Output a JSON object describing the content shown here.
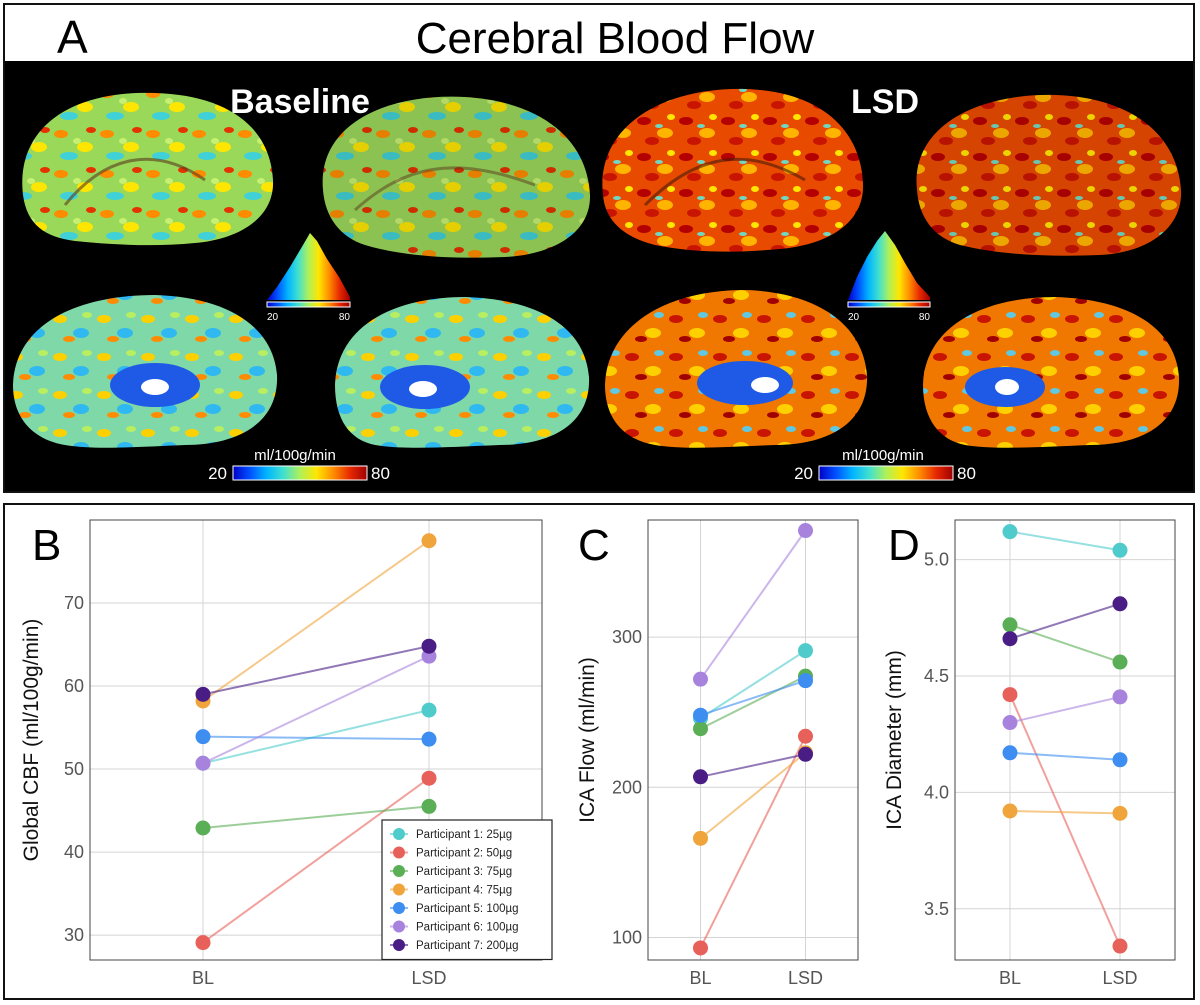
{
  "panel_a": {
    "letter": "A",
    "title": "Cerebral Blood Flow",
    "left_group": "Baseline",
    "right_group": "LSD",
    "colorbar": {
      "unit": "ml/100g/min",
      "min": "20",
      "max": "80"
    },
    "colormap": [
      "#0000c8",
      "#0050ff",
      "#00b4ff",
      "#40e0d0",
      "#aef05a",
      "#ffe600",
      "#ff8c00",
      "#e62800",
      "#a00000"
    ]
  },
  "panel_b": {
    "letter": "B"
  },
  "panel_c": {
    "letter": "C"
  },
  "panel_d": {
    "letter": "D"
  },
  "chart_data": [
    {
      "type": "line",
      "panel": "B",
      "ylabel": "Global CBF (ml/100g/min)",
      "categories": [
        "BL",
        "LSD"
      ],
      "ylim": [
        27,
        80
      ],
      "yticks": [
        30,
        40,
        50,
        60,
        70
      ],
      "grid": true,
      "legend": "bottom-right",
      "series": [
        {
          "name": "Participant 1: 25µg",
          "color": "#4fcbcb",
          "values": [
            50.7,
            57.1
          ]
        },
        {
          "name": "Participant 2: 50µg",
          "color": "#e8605a",
          "values": [
            29.1,
            48.9
          ]
        },
        {
          "name": "Participant 3: 75µg",
          "color": "#5aae55",
          "values": [
            42.9,
            45.5
          ]
        },
        {
          "name": "Participant 4: 75µg",
          "color": "#f0a53c",
          "values": [
            58.2,
            77.5
          ]
        },
        {
          "name": "Participant 5: 100µg",
          "color": "#3d8ef0",
          "values": [
            53.9,
            53.6
          ]
        },
        {
          "name": "Participant 6: 100µg",
          "color": "#a883de",
          "values": [
            50.7,
            63.6
          ]
        },
        {
          "name": "Participant 7: 200µg",
          "color": "#4a1d86",
          "values": [
            59.0,
            64.8
          ]
        }
      ]
    },
    {
      "type": "line",
      "panel": "C",
      "ylabel": "ICA Flow (ml/min)",
      "categories": [
        "BL",
        "LSD"
      ],
      "ylim": [
        85,
        378
      ],
      "yticks": [
        100,
        200,
        300
      ],
      "grid": true,
      "series": [
        {
          "name": "Participant 1: 25µg",
          "color": "#4fcbcb",
          "values": [
            246,
            291
          ]
        },
        {
          "name": "Participant 2: 50µg",
          "color": "#e8605a",
          "values": [
            93,
            234
          ]
        },
        {
          "name": "Participant 3: 75µg",
          "color": "#5aae55",
          "values": [
            239,
            274
          ]
        },
        {
          "name": "Participant 4: 75µg",
          "color": "#f0a53c",
          "values": [
            166,
            223
          ]
        },
        {
          "name": "Participant 5: 100µg",
          "color": "#3d8ef0",
          "values": [
            248,
            271
          ]
        },
        {
          "name": "Participant 6: 100µg",
          "color": "#a883de",
          "values": [
            272,
            371
          ]
        },
        {
          "name": "Participant 7: 200µg",
          "color": "#4a1d86",
          "values": [
            207,
            222
          ]
        }
      ]
    },
    {
      "type": "line",
      "panel": "D",
      "ylabel": "ICA Diameter (mm)",
      "categories": [
        "BL",
        "LSD"
      ],
      "ylim": [
        3.28,
        5.17
      ],
      "yticks": [
        3.5,
        4.0,
        4.5,
        5.0
      ],
      "ytick_labels": [
        "3.5",
        "4.0",
        "4.5",
        "5.0"
      ],
      "grid": true,
      "series": [
        {
          "name": "Participant 1: 25µg",
          "color": "#4fcbcb",
          "values": [
            5.12,
            5.04
          ]
        },
        {
          "name": "Participant 2: 50µg",
          "color": "#e8605a",
          "values": [
            4.42,
            3.34
          ]
        },
        {
          "name": "Participant 3: 75µg",
          "color": "#5aae55",
          "values": [
            4.72,
            4.56
          ]
        },
        {
          "name": "Participant 4: 75µg",
          "color": "#f0a53c",
          "values": [
            3.92,
            3.91
          ]
        },
        {
          "name": "Participant 5: 100µg",
          "color": "#3d8ef0",
          "values": [
            4.17,
            4.14
          ]
        },
        {
          "name": "Participant 6: 100µg",
          "color": "#a883de",
          "values": [
            4.3,
            4.41
          ]
        },
        {
          "name": "Participant 7: 200µg",
          "color": "#4a1d86",
          "values": [
            4.66,
            4.81
          ]
        }
      ]
    }
  ]
}
